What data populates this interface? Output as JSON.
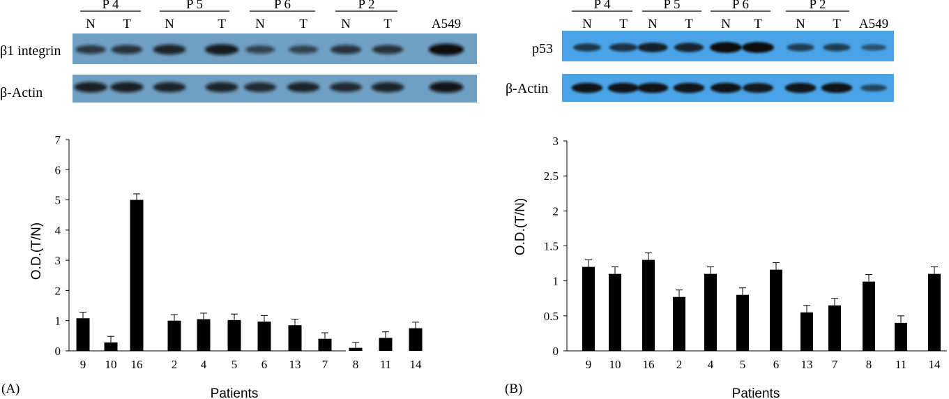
{
  "panels": {
    "A": {
      "label": "(A)",
      "blot": {
        "groups": [
          "P 4",
          "P 5",
          "P 6",
          "P 2"
        ],
        "lanes": [
          "N",
          "T",
          "N",
          "T",
          "N",
          "T",
          "N",
          "T",
          "A549"
        ],
        "protein_label": "β1 integrin",
        "control_label": "β-Actin",
        "membrane_color": "#6f9fc2",
        "protein_band_intensity": [
          0.55,
          0.6,
          0.75,
          0.85,
          0.45,
          0.45,
          0.6,
          0.6,
          1.0
        ],
        "control_band_intensity": [
          0.8,
          0.8,
          0.75,
          0.75,
          0.7,
          0.75,
          0.7,
          0.75,
          0.9
        ]
      }
    },
    "B": {
      "label": "(B)",
      "blot": {
        "groups": [
          "P 4",
          "P 5",
          "P 6",
          "P 2"
        ],
        "lanes": [
          "N",
          "T",
          "N",
          "T",
          "N",
          "T",
          "N",
          "T",
          "A549"
        ],
        "protein_label": "p53",
        "control_label": "β-Actin",
        "membrane_color": "#4aa3e6",
        "protein_band_intensity": [
          0.55,
          0.6,
          0.8,
          0.75,
          1.0,
          1.0,
          0.5,
          0.5,
          0.3
        ],
        "control_band_intensity": [
          0.9,
          0.9,
          0.9,
          0.9,
          0.9,
          0.85,
          0.9,
          0.9,
          0.4
        ]
      }
    }
  },
  "chart_data": [
    {
      "type": "bar",
      "panel": "A",
      "categories": [
        "9",
        "10",
        "16",
        "2",
        "4",
        "5",
        "6",
        "13",
        "7",
        "8",
        "11",
        "14"
      ],
      "values": [
        1.08,
        0.28,
        5.0,
        1.0,
        1.05,
        1.02,
        0.97,
        0.85,
        0.4,
        0.1,
        0.43,
        0.75
      ],
      "errors": [
        0.2,
        0.2,
        0.2,
        0.2,
        0.2,
        0.2,
        0.2,
        0.2,
        0.2,
        0.18,
        0.2,
        0.2
      ],
      "xlabel": "Patients",
      "ylabel": "O.D.(T/N)",
      "ylim": [
        0,
        7
      ],
      "yticks": [
        "0",
        "1",
        "2",
        "3",
        "4",
        "5",
        "6",
        "7"
      ],
      "grid": false,
      "bar_color": "#000000"
    },
    {
      "type": "bar",
      "panel": "B",
      "categories": [
        "9",
        "10",
        "16",
        "2",
        "4",
        "5",
        "6",
        "13",
        "7",
        "8",
        "11",
        "14"
      ],
      "values": [
        1.2,
        1.1,
        1.3,
        0.77,
        1.1,
        0.8,
        1.16,
        0.55,
        0.65,
        0.99,
        0.4,
        1.1
      ],
      "errors": [
        0.1,
        0.1,
        0.1,
        0.1,
        0.1,
        0.1,
        0.1,
        0.1,
        0.1,
        0.1,
        0.1,
        0.1
      ],
      "xlabel": "Patients",
      "ylabel": "O.D.(T/N)",
      "ylim": [
        0,
        3
      ],
      "yticks": [
        "0",
        "0.5",
        "1",
        "1.5",
        "2",
        "2.5",
        "3"
      ],
      "grid": false,
      "bar_color": "#000000"
    }
  ]
}
